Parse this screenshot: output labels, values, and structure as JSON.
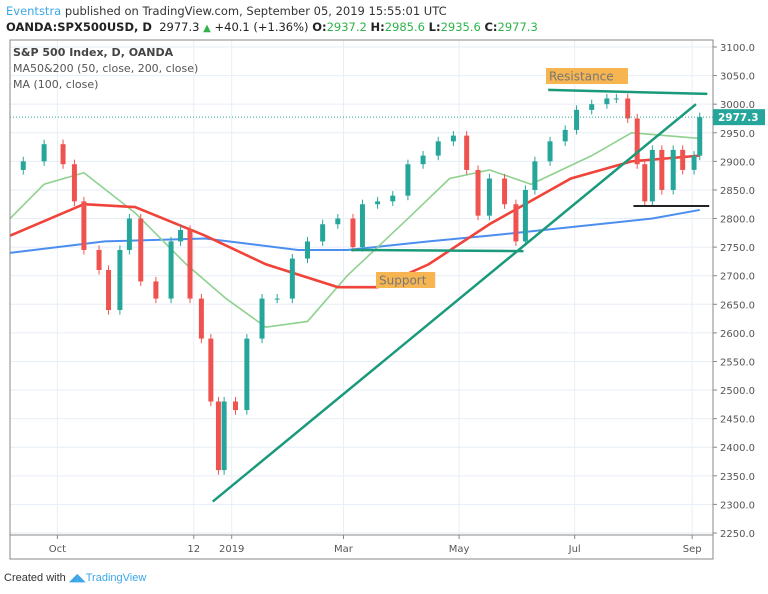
{
  "header": {
    "author": "Eventstra",
    "published": "published on TradingView.com, September 05, 2019 15:55:01 UTC",
    "symbol": "OANDA:SPX500USD, D",
    "last": "2977.3",
    "change": "+40.1 (+1.36%)",
    "o_label": "O:",
    "o": "2937.2",
    "h_label": "H:",
    "h": "2985.6",
    "l_label": "L:",
    "l": "2935.6",
    "c_label": "C:",
    "c": "2977.3"
  },
  "legend": {
    "title": "S&P 500 Index, D, OANDA",
    "ma1": "MA50&200 (50, close, 200, close)",
    "ma2": "MA (100, close)"
  },
  "footer": {
    "created": "Created with",
    "brand": "TradingView"
  },
  "colors": {
    "up": "#26a69a",
    "down": "#ef5350",
    "ma50": "#8fd18f",
    "ma100": "#f0433a",
    "ma200": "#4c8ef0",
    "drawing": "#1a9a7a",
    "label_bg": "#f7b552",
    "price_tag": "#26a69a"
  },
  "chart_data": {
    "type": "candlestick",
    "ylim": [
      2250,
      3100
    ],
    "xlim": [
      "2018-09-06",
      "2019-09-12"
    ],
    "y_ticks": [
      "3100.0",
      "3050.0",
      "3000.0",
      "2950.0",
      "2900.0",
      "2850.0",
      "2800.0",
      "2750.0",
      "2700.0",
      "2650.0",
      "2600.0",
      "2550.0",
      "2500.0",
      "2450.0",
      "2400.0",
      "2350.0",
      "2300.0",
      "2250.0"
    ],
    "x_ticks": [
      [
        "2018-10-01",
        "Oct"
      ],
      [
        "2018-12-12",
        "12"
      ],
      [
        "2019-01-01",
        "2019"
      ],
      [
        "2019-03-01",
        "Mar"
      ],
      [
        "2019-05-01",
        "May"
      ],
      [
        "2019-07-01",
        "Jul"
      ],
      [
        "2019-09-01",
        "Sep"
      ]
    ],
    "last_price_label": "2977.3",
    "closes": [
      [
        "2018-09-06",
        2885
      ],
      [
        "2018-09-13",
        2900
      ],
      [
        "2018-09-24",
        2930
      ],
      [
        "2018-10-04",
        2895
      ],
      [
        "2018-10-10",
        2830
      ],
      [
        "2018-10-15",
        2745
      ],
      [
        "2018-10-23",
        2710
      ],
      [
        "2018-10-28",
        2640
      ],
      [
        "2018-11-03",
        2745
      ],
      [
        "2018-11-08",
        2800
      ],
      [
        "2018-11-14",
        2690
      ],
      [
        "2018-11-22",
        2660
      ],
      [
        "2018-11-30",
        2760
      ],
      [
        "2018-12-05",
        2780
      ],
      [
        "2018-12-10",
        2660
      ],
      [
        "2018-12-16",
        2590
      ],
      [
        "2018-12-21",
        2480
      ],
      [
        "2018-12-25",
        2360
      ],
      [
        "2018-12-28",
        2480
      ],
      [
        "2019-01-03",
        2465
      ],
      [
        "2019-01-09",
        2590
      ],
      [
        "2019-01-17",
        2660
      ],
      [
        "2019-01-25",
        2660
      ],
      [
        "2019-02-02",
        2730
      ],
      [
        "2019-02-10",
        2760
      ],
      [
        "2019-02-18",
        2790
      ],
      [
        "2019-02-26",
        2800
      ],
      [
        "2019-03-06",
        2750
      ],
      [
        "2019-03-11",
        2825
      ],
      [
        "2019-03-19",
        2830
      ],
      [
        "2019-03-27",
        2840
      ],
      [
        "2019-04-04",
        2895
      ],
      [
        "2019-04-12",
        2910
      ],
      [
        "2019-04-20",
        2935
      ],
      [
        "2019-04-28",
        2945
      ],
      [
        "2019-05-05",
        2885
      ],
      [
        "2019-05-11",
        2805
      ],
      [
        "2019-05-17",
        2870
      ],
      [
        "2019-05-25",
        2825
      ],
      [
        "2019-05-31",
        2760
      ],
      [
        "2019-06-05",
        2850
      ],
      [
        "2019-06-10",
        2900
      ],
      [
        "2019-06-18",
        2935
      ],
      [
        "2019-06-26",
        2955
      ],
      [
        "2019-07-02",
        2990
      ],
      [
        "2019-07-10",
        3000
      ],
      [
        "2019-07-18",
        3010
      ],
      [
        "2019-07-23",
        3010
      ],
      [
        "2019-07-29",
        2975
      ],
      [
        "2019-08-03",
        2895
      ],
      [
        "2019-08-07",
        2830
      ],
      [
        "2019-08-11",
        2920
      ],
      [
        "2019-08-16",
        2850
      ],
      [
        "2019-08-22",
        2920
      ],
      [
        "2019-08-27",
        2885
      ],
      [
        "2019-09-02",
        2910
      ],
      [
        "2019-09-05",
        2977.3
      ]
    ],
    "ma50": [
      [
        "2018-09-06",
        2800
      ],
      [
        "2018-09-24",
        2860
      ],
      [
        "2018-10-15",
        2880
      ],
      [
        "2018-11-11",
        2810
      ],
      [
        "2018-12-08",
        2720
      ],
      [
        "2018-12-29",
        2660
      ],
      [
        "2019-01-19",
        2610
      ],
      [
        "2019-02-10",
        2620
      ],
      [
        "2019-03-03",
        2700
      ],
      [
        "2019-04-04",
        2800
      ],
      [
        "2019-04-26",
        2870
      ],
      [
        "2019-05-17",
        2885
      ],
      [
        "2019-06-08",
        2860
      ],
      [
        "2019-07-10",
        2910
      ],
      [
        "2019-07-31",
        2950
      ],
      [
        "2019-09-05",
        2940
      ]
    ],
    "ma100": [
      [
        "2018-09-06",
        2770
      ],
      [
        "2018-10-15",
        2825
      ],
      [
        "2018-11-11",
        2820
      ],
      [
        "2018-12-18",
        2770
      ],
      [
        "2019-01-19",
        2720
      ],
      [
        "2019-02-26",
        2680
      ],
      [
        "2019-03-19",
        2680
      ],
      [
        "2019-04-15",
        2720
      ],
      [
        "2019-05-17",
        2790
      ],
      [
        "2019-06-29",
        2870
      ],
      [
        "2019-07-31",
        2900
      ],
      [
        "2019-09-05",
        2910
      ]
    ],
    "ma200": [
      [
        "2018-09-06",
        2740
      ],
      [
        "2018-10-26",
        2760
      ],
      [
        "2018-12-18",
        2765
      ],
      [
        "2019-02-05",
        2745
      ],
      [
        "2019-03-03",
        2745
      ],
      [
        "2019-04-15",
        2760
      ],
      [
        "2019-05-17",
        2770
      ],
      [
        "2019-06-29",
        2785
      ],
      [
        "2019-08-11",
        2800
      ],
      [
        "2019-09-05",
        2815
      ]
    ],
    "annotations": {
      "resistance": {
        "label": "Resistance",
        "from": [
          "2019-06-17",
          3025
        ],
        "to": [
          "2019-09-09",
          3018
        ]
      },
      "support": {
        "label": "Support",
        "from": [
          "2019-03-05",
          2745
        ],
        "to": [
          "2019-06-04",
          2743
        ]
      },
      "trendline": {
        "from": [
          "2018-12-22",
          2305
        ],
        "to": [
          "2019-09-03",
          3000
        ]
      },
      "range_low": {
        "from": [
          "2019-08-01",
          2822
        ],
        "to": [
          "2019-09-10",
          2822
        ]
      }
    }
  }
}
